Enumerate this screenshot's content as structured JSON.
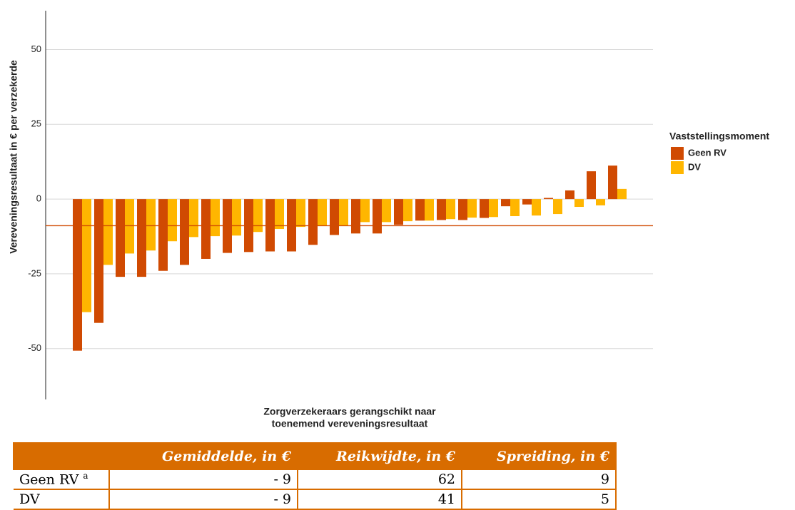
{
  "chart_data": {
    "type": "bar",
    "ylabel": "Vereveningsresultaat in  €  per verzekerde",
    "xlabel": [
      "Zorgverzekeraars gerangschikt naar",
      "toenemend vereveningsresultaat"
    ],
    "legend_title": "Vaststellingsmoment",
    "categories": [
      null,
      null,
      null,
      null,
      null,
      null,
      null,
      null,
      null,
      null,
      null,
      null,
      null,
      null,
      null,
      null,
      null,
      null,
      null,
      null,
      null,
      null,
      null,
      null,
      null,
      null
    ],
    "series": [
      {
        "name": "Geen RV",
        "color": "#d04a02",
        "values": [
          -50.7,
          -41.4,
          -26,
          -26,
          -24,
          -22,
          -20,
          -18,
          -17.7,
          -17.5,
          -17.5,
          -15.3,
          -12,
          -11.5,
          -11.5,
          -8.6,
          -7.2,
          -7,
          -7,
          -6.3,
          -2.4,
          -1.8,
          0.4,
          2.9,
          9.3,
          11.2
        ]
      },
      {
        "name": "DV",
        "color": "#ffb600",
        "values": [
          -37.8,
          -22,
          -18.2,
          -17.2,
          -14.1,
          -12.7,
          -12.4,
          -12.2,
          -11,
          -10,
          -9.3,
          -8.9,
          -8.9,
          -7.7,
          -7.7,
          -7.4,
          -7.2,
          -6.7,
          -6.2,
          -6,
          -5.7,
          -5.5,
          -5,
          -2.6,
          -2.1,
          3.4
        ]
      }
    ],
    "hline": -8.9,
    "hline_color": "#d04a02",
    "ylim": [
      -67,
      63
    ],
    "yticks": [
      -50,
      -25,
      0,
      25,
      50
    ],
    "grid": true
  },
  "table": {
    "headers": [
      "Gemiddelde, in €",
      "Reikwijdte, in €",
      "Spreiding, in €"
    ],
    "rows": [
      {
        "label": "Geen RV",
        "note": "a",
        "cells": [
          "- 9",
          "62",
          "9"
        ]
      },
      {
        "label": "DV",
        "cells": [
          "- 9",
          "41",
          "5"
        ]
      }
    ]
  }
}
